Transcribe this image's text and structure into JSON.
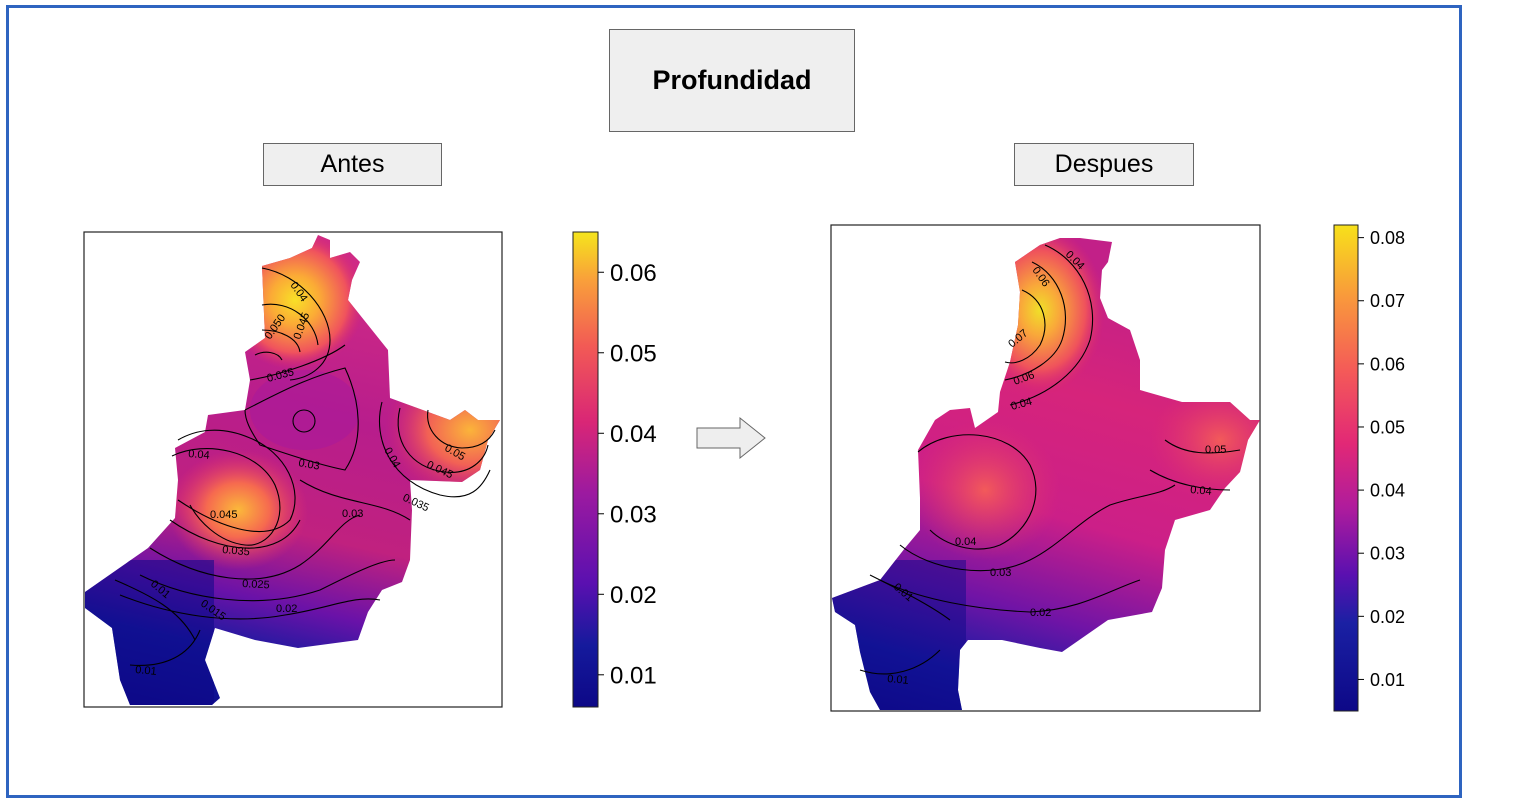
{
  "title": "Profundidad",
  "panels": {
    "before": {
      "label": "Antes"
    },
    "after": {
      "label": "Despues"
    }
  },
  "arrow": "right-arrow-icon",
  "colormap": {
    "name": "plasma-like",
    "stops": [
      "#0d0887",
      "#1a1fa0",
      "#6a00a8",
      "#b12a90",
      "#e02f6a",
      "#f0505a",
      "#fca636",
      "#f0f921"
    ]
  },
  "chart_data": [
    {
      "type": "heatmap",
      "title": "Antes",
      "colorbar": {
        "ticks": [
          "0.01",
          "0.02",
          "0.03",
          "0.04",
          "0.05",
          "0.06"
        ],
        "range": [
          0.006,
          0.065
        ]
      },
      "contour_labels": [
        "0.04",
        "0.050",
        "0.045",
        "0.035",
        "0.03",
        "0.04",
        "0.045",
        "0.035",
        "0.025",
        "0.015",
        "0.01",
        "0.01",
        "0.02",
        "0.03",
        "0.04",
        "0.05",
        "0.045",
        "0.035"
      ]
    },
    {
      "type": "heatmap",
      "title": "Despues",
      "colorbar": {
        "ticks": [
          "0.01",
          "0.02",
          "0.03",
          "0.04",
          "0.05",
          "0.06",
          "0.07",
          "0.08"
        ],
        "range": [
          0.005,
          0.082
        ]
      },
      "contour_labels": [
        "0.04",
        "0.06",
        "0.07",
        "0.06",
        "0.04",
        "0.05",
        "0.04",
        "0.04",
        "0.03",
        "0.02",
        "0.01",
        "0.01"
      ]
    }
  ]
}
